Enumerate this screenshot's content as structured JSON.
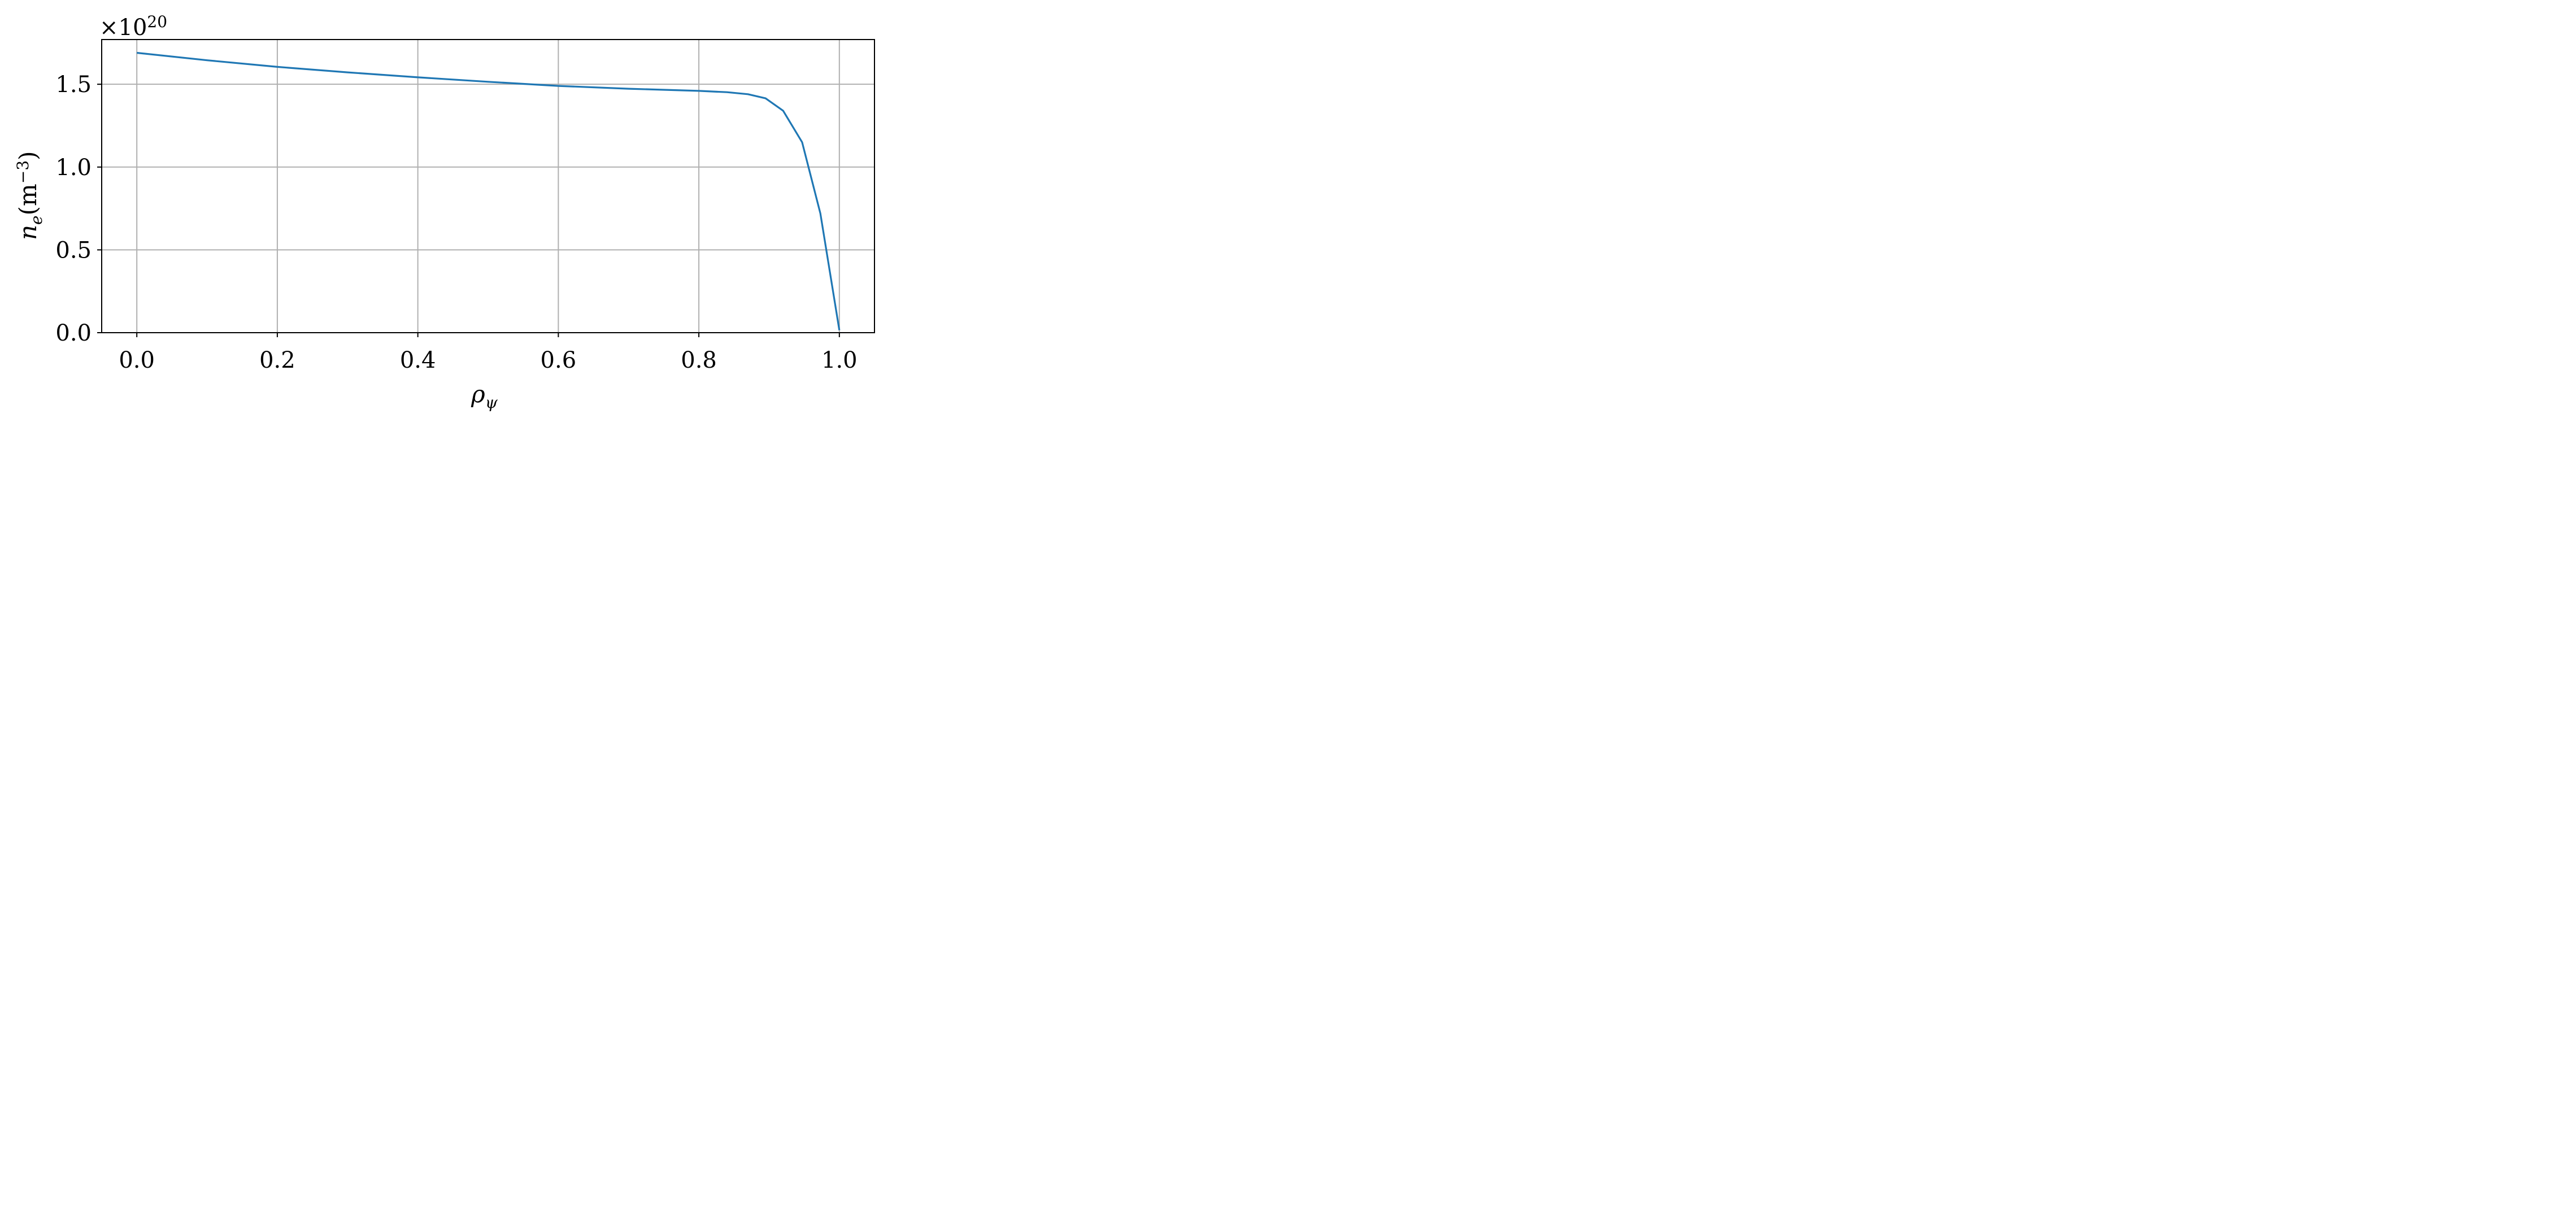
{
  "chart_data": {
    "type": "line",
    "xlabel": {
      "base": "ρ",
      "sub": "ψ"
    },
    "ylabel": {
      "base": "n",
      "sub": "e",
      "unit_open": "(m",
      "unit_exp": "−3",
      "unit_close": ")"
    },
    "y_offset": {
      "prefix": "×10",
      "exponent": "20"
    },
    "xlim": [
      -0.05,
      1.05
    ],
    "ylim": [
      0.0,
      1.77
    ],
    "xticks": [
      {
        "value": 0.0,
        "label": "0.0"
      },
      {
        "value": 0.2,
        "label": "0.2"
      },
      {
        "value": 0.4,
        "label": "0.4"
      },
      {
        "value": 0.6,
        "label": "0.6"
      },
      {
        "value": 0.8,
        "label": "0.8"
      },
      {
        "value": 1.0,
        "label": "1.0"
      }
    ],
    "yticks": [
      {
        "value": 0.0,
        "label": "0.0"
      },
      {
        "value": 0.5,
        "label": "0.5"
      },
      {
        "value": 1.0,
        "label": "1.0"
      },
      {
        "value": 1.5,
        "label": "1.5"
      }
    ],
    "grid": true,
    "series": [
      {
        "color": "#1f77b4",
        "x": [
          0.0,
          0.1,
          0.2,
          0.3,
          0.4,
          0.5,
          0.6,
          0.7,
          0.8,
          0.84,
          0.87,
          0.895,
          0.92,
          0.947,
          0.973,
          1.0
        ],
        "y": [
          1.69,
          1.645,
          1.605,
          1.572,
          1.542,
          1.515,
          1.49,
          1.473,
          1.46,
          1.452,
          1.44,
          1.415,
          1.34,
          1.15,
          0.72,
          0.015
        ]
      }
    ]
  }
}
